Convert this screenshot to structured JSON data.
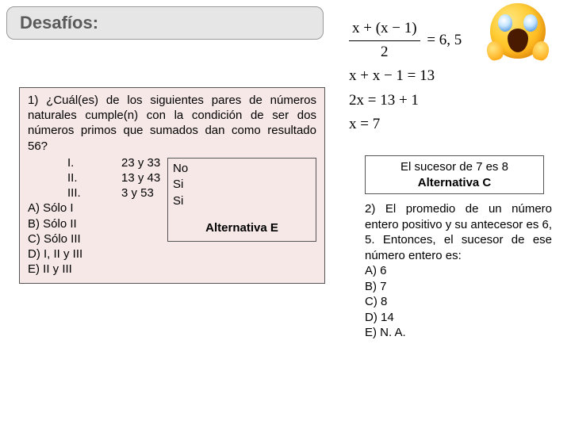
{
  "title": "Desafíos:",
  "q1": {
    "prompt": "1) ¿Cuál(es) de los siguientes pares de números naturales cumple(n) con la condición de ser dos números primos que sumados dan como resultado 56?",
    "items": [
      {
        "label": "I.",
        "pair": "23 y 33",
        "judge": "No"
      },
      {
        "label": "II.",
        "pair": "13 y 43",
        "judge": "Si"
      },
      {
        "label": "III.",
        "pair": "3 y 53",
        "judge": "Si"
      }
    ],
    "options": [
      "A) Sólo I",
      "B) Sólo II",
      "C) Sólo III",
      "D) I, II y III",
      "E) II y III"
    ],
    "answer_label": "Alternativa E",
    "box_bg": "#f7e8e8",
    "box_border": "#555555"
  },
  "math": {
    "line1_num": "x + (x − 1)",
    "line1_den": "2",
    "line1_rhs": "= 6, 5",
    "line2": "x + x − 1 = 13",
    "line3": "2x = 13 + 1",
    "line4": "x = 7"
  },
  "successor": {
    "text": "El sucesor de 7 es 8",
    "alt": "Alternativa C"
  },
  "q2": {
    "prompt": "2) El promedio de un número entero positivo y su antecesor es 6, 5. Entonces, el sucesor de ese número entero es:",
    "options": [
      "A)  6",
      "B)  7",
      "C)  8",
      "D)  14",
      "E)  N. A."
    ]
  },
  "colors": {
    "page_bg": "#ffffff",
    "title_bg": "#e6e6e6",
    "title_border": "#999999",
    "title_text": "#5a5a5a"
  }
}
